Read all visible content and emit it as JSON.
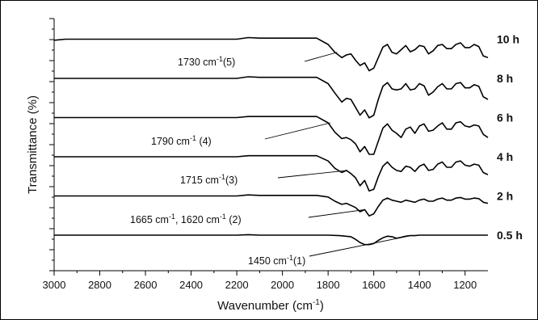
{
  "chart_data": {
    "type": "line",
    "title": "",
    "xlabel": "Wavenumber (cm",
    "xlabel_sup": "-1",
    "xlabel_tail": ")",
    "ylabel": "Transmittance (%)",
    "xlim": [
      3000,
      1100
    ],
    "x_reversed": true,
    "x_ticks": [
      3000,
      2800,
      2600,
      2400,
      2200,
      2000,
      1800,
      1600,
      1400,
      1200
    ],
    "x_tick_labels": [
      "3000",
      "2800",
      "2600",
      "2400",
      "2200",
      "2000",
      "1800",
      "1600",
      "1400",
      "1200"
    ],
    "y_ticks_labeled": false,
    "grid": false,
    "legend": "none (series labeled at right end of each trace)",
    "series": [
      {
        "name": "10 h",
        "offset": 5,
        "x": [
          3000,
          2950,
          2900,
          2800,
          2700,
          2600,
          2500,
          2400,
          2300,
          2200,
          2150,
          2100,
          2000,
          1900,
          1850,
          1800,
          1770,
          1740,
          1720,
          1700,
          1680,
          1660,
          1640,
          1620,
          1600,
          1580,
          1560,
          1540,
          1520,
          1500,
          1480,
          1460,
          1440,
          1420,
          1400,
          1380,
          1360,
          1340,
          1320,
          1300,
          1280,
          1260,
          1240,
          1220,
          1200,
          1180,
          1160,
          1140,
          1120,
          1100
        ],
        "y": [
          0.98,
          1.0,
          1.0,
          1.0,
          1.0,
          1.0,
          1.0,
          1.0,
          1.0,
          1.0,
          1.03,
          1.02,
          1.02,
          1.02,
          1.02,
          0.9,
          0.75,
          0.65,
          0.7,
          0.72,
          0.6,
          0.5,
          0.55,
          0.4,
          0.45,
          0.65,
          0.85,
          0.9,
          0.75,
          0.72,
          0.8,
          0.88,
          0.76,
          0.8,
          0.88,
          0.86,
          0.72,
          0.78,
          0.88,
          0.9,
          0.82,
          0.82,
          0.9,
          0.93,
          0.84,
          0.84,
          0.9,
          0.86,
          0.68,
          0.65
        ]
      },
      {
        "name": "8 h",
        "offset": 4,
        "x": [
          3000,
          2950,
          2900,
          2800,
          2700,
          2600,
          2500,
          2400,
          2300,
          2200,
          2150,
          2100,
          2000,
          1900,
          1850,
          1800,
          1770,
          1740,
          1720,
          1700,
          1680,
          1660,
          1640,
          1620,
          1600,
          1580,
          1560,
          1540,
          1520,
          1500,
          1480,
          1460,
          1440,
          1420,
          1400,
          1380,
          1360,
          1340,
          1320,
          1300,
          1280,
          1260,
          1240,
          1220,
          1200,
          1180,
          1160,
          1140,
          1120,
          1100
        ],
        "y": [
          1.0,
          1.0,
          1.0,
          1.0,
          1.0,
          1.0,
          1.0,
          1.0,
          1.0,
          1.0,
          1.03,
          1.02,
          1.02,
          1.02,
          1.02,
          0.9,
          0.72,
          0.55,
          0.62,
          0.6,
          0.45,
          0.3,
          0.4,
          0.25,
          0.3,
          0.6,
          0.85,
          0.92,
          0.8,
          0.78,
          0.8,
          0.9,
          0.78,
          0.8,
          0.9,
          0.86,
          0.68,
          0.74,
          0.84,
          0.9,
          0.8,
          0.8,
          0.9,
          0.92,
          0.82,
          0.82,
          0.88,
          0.85,
          0.65,
          0.6
        ]
      },
      {
        "name": "6 h",
        "offset": 3,
        "x": [
          3000,
          2950,
          2900,
          2800,
          2700,
          2600,
          2500,
          2400,
          2300,
          2200,
          2150,
          2100,
          2000,
          1900,
          1850,
          1800,
          1770,
          1740,
          1720,
          1700,
          1680,
          1660,
          1640,
          1620,
          1600,
          1580,
          1560,
          1540,
          1520,
          1500,
          1480,
          1460,
          1440,
          1420,
          1400,
          1380,
          1360,
          1340,
          1320,
          1300,
          1280,
          1260,
          1240,
          1220,
          1200,
          1180,
          1160,
          1140,
          1120,
          1100
        ],
        "y": [
          1.0,
          1.0,
          1.0,
          1.0,
          1.0,
          1.0,
          1.0,
          1.0,
          1.0,
          1.0,
          1.02,
          1.02,
          1.02,
          1.02,
          1.02,
          0.9,
          0.72,
          0.6,
          0.62,
          0.58,
          0.5,
          0.35,
          0.45,
          0.3,
          0.3,
          0.55,
          0.8,
          0.88,
          0.76,
          0.7,
          0.62,
          0.78,
          0.82,
          0.7,
          0.84,
          0.88,
          0.74,
          0.76,
          0.84,
          0.9,
          0.78,
          0.78,
          0.9,
          0.92,
          0.84,
          0.82,
          0.86,
          0.84,
          0.68,
          0.62
        ]
      },
      {
        "name": "4 h",
        "offset": 2,
        "x": [
          3000,
          2950,
          2900,
          2800,
          2700,
          2600,
          2500,
          2400,
          2300,
          2200,
          2150,
          2100,
          2000,
          1900,
          1850,
          1800,
          1770,
          1740,
          1720,
          1700,
          1680,
          1660,
          1640,
          1620,
          1600,
          1580,
          1560,
          1540,
          1520,
          1500,
          1480,
          1460,
          1440,
          1420,
          1400,
          1380,
          1360,
          1340,
          1320,
          1300,
          1280,
          1260,
          1240,
          1220,
          1200,
          1180,
          1160,
          1140,
          1120,
          1100
        ],
        "y": [
          1.0,
          1.0,
          1.0,
          1.0,
          1.0,
          1.0,
          1.0,
          1.0,
          1.0,
          1.0,
          1.02,
          1.02,
          1.02,
          1.02,
          1.02,
          0.92,
          0.78,
          0.7,
          0.74,
          0.68,
          0.6,
          0.45,
          0.55,
          0.35,
          0.38,
          0.62,
          0.82,
          0.9,
          0.8,
          0.74,
          0.72,
          0.82,
          0.8,
          0.72,
          0.82,
          0.86,
          0.74,
          0.76,
          0.86,
          0.9,
          0.8,
          0.8,
          0.9,
          0.92,
          0.84,
          0.82,
          0.86,
          0.84,
          0.7,
          0.66
        ]
      },
      {
        "name": "2 h",
        "offset": 1,
        "x": [
          3000,
          2950,
          2900,
          2800,
          2700,
          2600,
          2500,
          2400,
          2300,
          2200,
          2150,
          2100,
          2000,
          1900,
          1850,
          1800,
          1770,
          1740,
          1720,
          1700,
          1680,
          1660,
          1640,
          1620,
          1600,
          1580,
          1560,
          1540,
          1520,
          1500,
          1480,
          1460,
          1440,
          1420,
          1400,
          1380,
          1360,
          1340,
          1320,
          1300,
          1280,
          1260,
          1240,
          1220,
          1200,
          1180,
          1160,
          1140,
          1120,
          1100
        ],
        "y": [
          1.0,
          1.0,
          1.0,
          1.0,
          1.0,
          1.0,
          1.0,
          1.0,
          1.0,
          1.0,
          1.02,
          1.01,
          1.01,
          1.01,
          1.01,
          0.98,
          0.9,
          0.84,
          0.86,
          0.82,
          0.78,
          0.7,
          0.74,
          0.62,
          0.66,
          0.8,
          0.92,
          0.96,
          0.92,
          0.9,
          0.88,
          0.92,
          0.9,
          0.88,
          0.92,
          0.94,
          0.9,
          0.9,
          0.94,
          0.96,
          0.92,
          0.92,
          0.96,
          0.97,
          0.94,
          0.94,
          0.96,
          0.95,
          0.88,
          0.86
        ]
      },
      {
        "name": "0.5 h",
        "offset": 0,
        "x": [
          3000,
          2950,
          2900,
          2800,
          2700,
          2600,
          2500,
          2400,
          2300,
          2200,
          2150,
          2100,
          2000,
          1900,
          1850,
          1800,
          1750,
          1700,
          1680,
          1660,
          1640,
          1620,
          1600,
          1580,
          1560,
          1540,
          1520,
          1500,
          1480,
          1460,
          1440,
          1420,
          1400,
          1380,
          1360,
          1340,
          1320,
          1300,
          1280,
          1260,
          1240,
          1220,
          1200,
          1180,
          1160,
          1140,
          1120,
          1100
        ],
        "y": [
          1.0,
          1.0,
          1.0,
          1.0,
          1.0,
          1.0,
          1.0,
          1.0,
          1.0,
          1.0,
          1.01,
          1.0,
          1.0,
          1.0,
          1.0,
          1.0,
          0.99,
          0.97,
          0.92,
          0.86,
          0.82,
          0.82,
          0.84,
          0.9,
          0.95,
          0.98,
          0.97,
          0.94,
          0.96,
          0.98,
          0.99,
          0.99,
          1.0,
          1.0,
          1.0,
          1.0,
          1.0,
          1.0,
          1.0,
          1.0,
          1.0,
          1.0,
          1.0,
          1.0,
          1.0,
          1.0,
          1.0,
          1.0
        ]
      }
    ],
    "annotations": [
      {
        "text": "1730 cm",
        "sup": "-1",
        "tail": "(5)",
        "series": "10 h",
        "target_x": 1760
      },
      {
        "text": "1790 cm",
        "sup": "-1",
        "tail": " (4)",
        "series": "6 h",
        "target_x": 1790
      },
      {
        "text": "1715 cm",
        "sup": "-1",
        "tail": "(3)",
        "series": "4 h",
        "target_x": 1715
      },
      {
        "text": "1665 cm",
        "sup": "-1",
        "tail": ", 1620 cm",
        "sup2": "-1",
        "tail2": " (2)",
        "series": "2 h",
        "target_x": 1640
      },
      {
        "text": "1450 cm",
        "sup": "-1",
        "tail": "(1)",
        "series": "0.5 h",
        "target_x": 1450
      }
    ]
  }
}
